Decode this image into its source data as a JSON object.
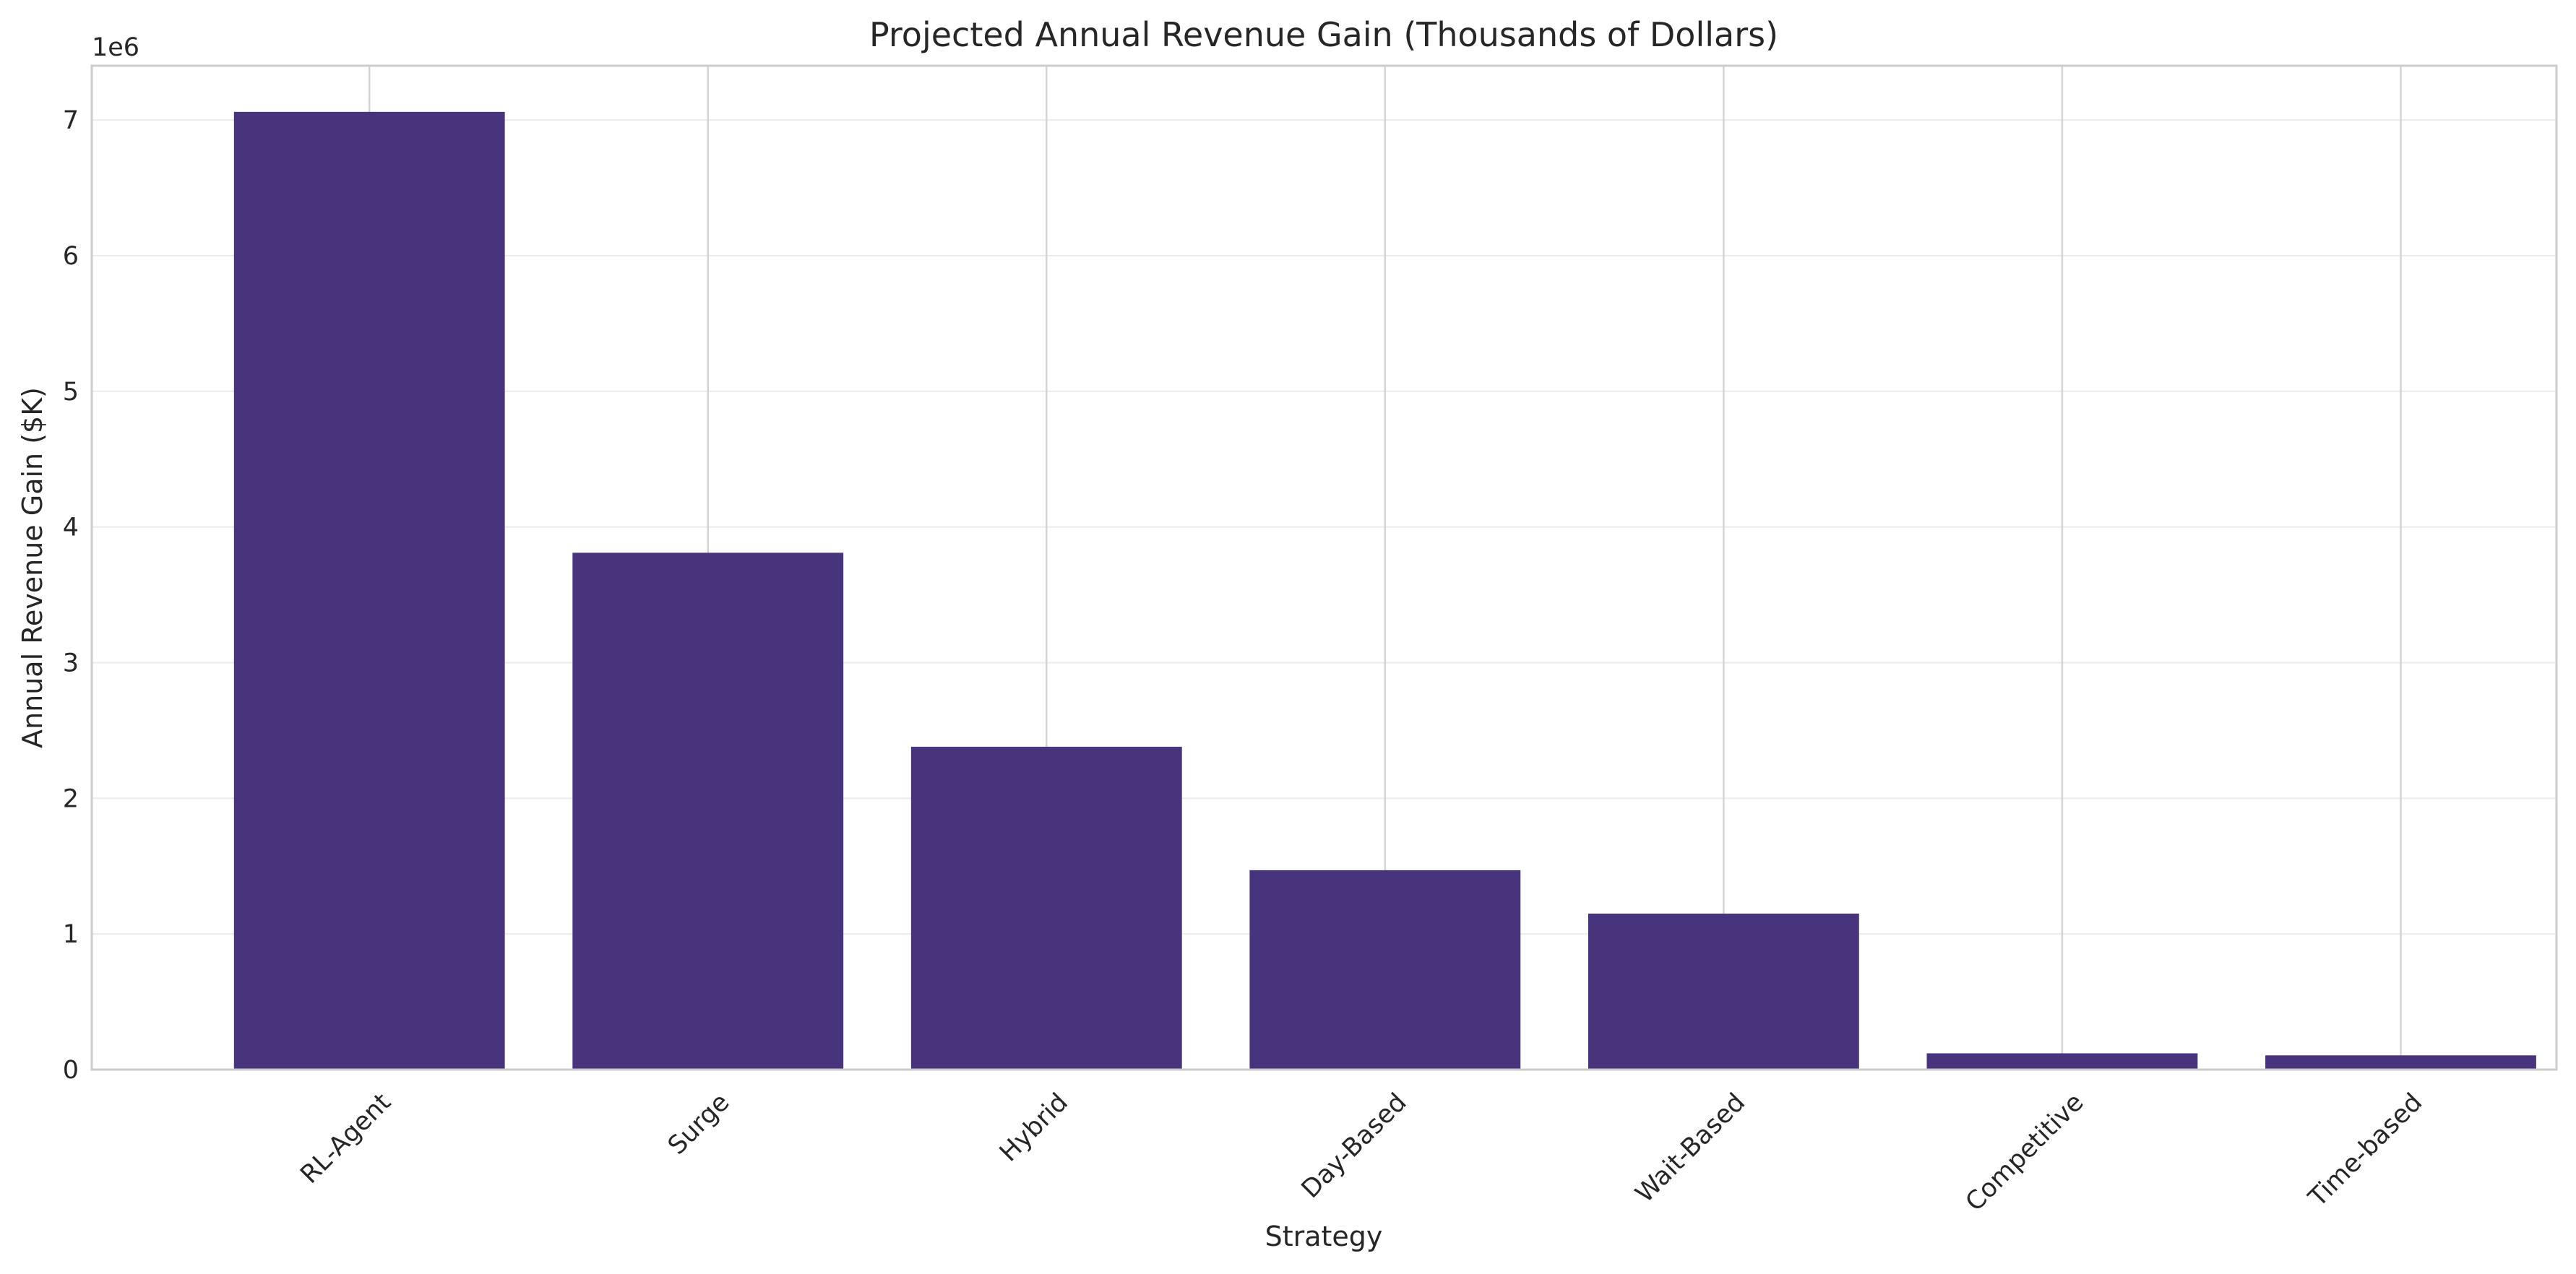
{
  "chart_data": {
    "type": "bar",
    "title": "Projected Annual Revenue Gain (Thousands of Dollars)",
    "xlabel": "Strategy",
    "ylabel": "Annual Revenue Gain ($K)",
    "offset_label": "1e6",
    "categories": [
      "RL-Agent",
      "Surge",
      "Hybrid",
      "Day-Based",
      "Wait-Based",
      "Competitive",
      "Time-based"
    ],
    "values": [
      7060000,
      3810000,
      2380000,
      1470000,
      1150000,
      120000,
      105000
    ],
    "ylim": [
      0,
      7400000
    ],
    "yticks": [
      0,
      1000000,
      2000000,
      3000000,
      4000000,
      5000000,
      6000000,
      7000000
    ],
    "ytick_labels": [
      "0",
      "1",
      "2",
      "3",
      "4",
      "5",
      "6",
      "7"
    ],
    "grid": true,
    "legend": "none",
    "bar_color": "#48337d"
  }
}
